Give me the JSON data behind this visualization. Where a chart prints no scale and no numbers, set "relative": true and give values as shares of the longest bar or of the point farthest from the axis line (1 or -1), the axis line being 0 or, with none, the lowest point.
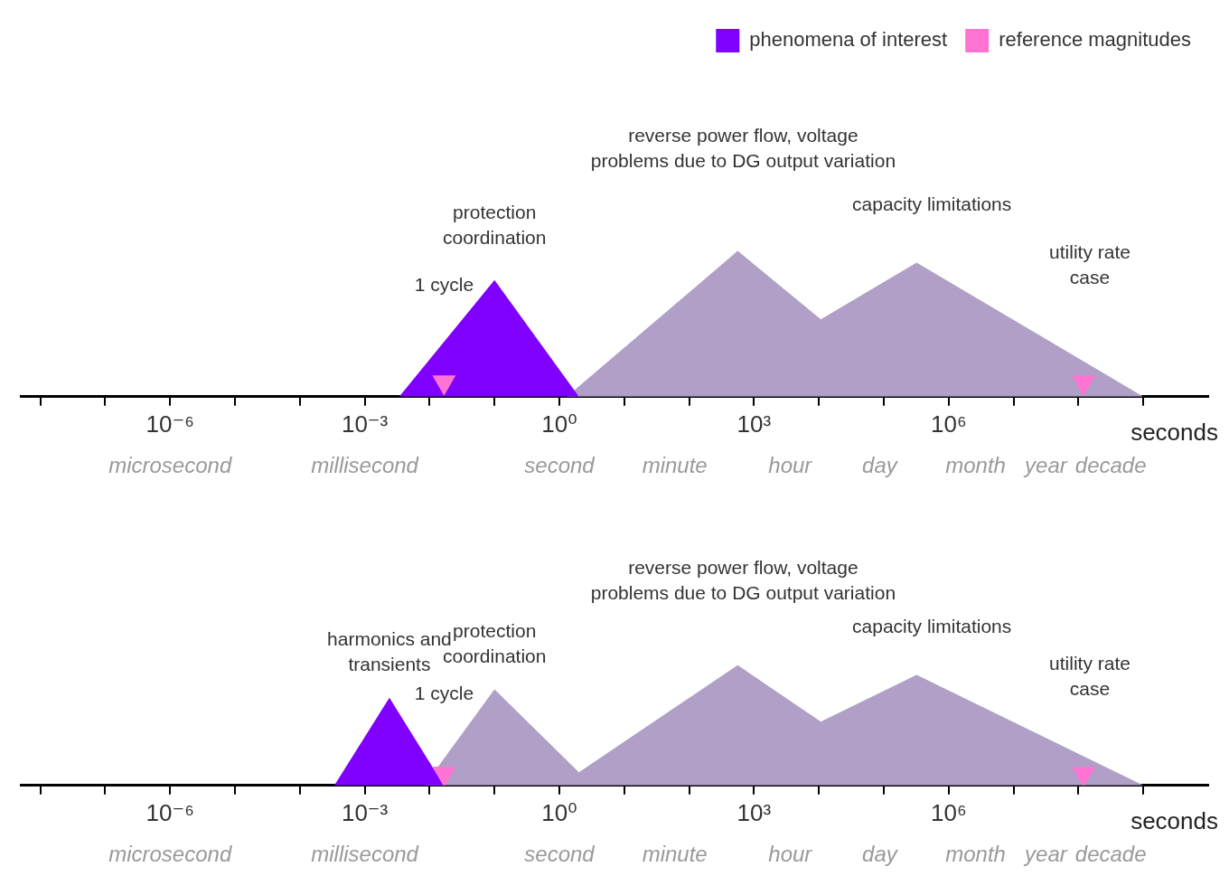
{
  "chart_data": [
    {
      "type": "area",
      "relative": true,
      "log": "x",
      "xlim": [
        5e-09,
        10000000000.0
      ],
      "xlabel": "seconds",
      "legend": "top right",
      "xticks": [
        {
          "value": 1e-08,
          "label": null
        },
        {
          "value": 1e-07,
          "label": null
        },
        {
          "value": 1e-06,
          "label": "10⁻⁶"
        },
        {
          "value": 1e-05,
          "label": null
        },
        {
          "value": 0.0001,
          "label": null
        },
        {
          "value": 0.001,
          "label": "10⁻³"
        },
        {
          "value": 0.01,
          "label": null
        },
        {
          "value": 0.1,
          "label": null
        },
        {
          "value": 1,
          "label": "10⁰"
        },
        {
          "value": 10,
          "label": null
        },
        {
          "value": 100,
          "label": null
        },
        {
          "value": 1000,
          "label": "10³"
        },
        {
          "value": 10000.0,
          "label": null
        },
        {
          "value": 100000.0,
          "label": null
        },
        {
          "value": 1000000.0,
          "label": "10⁶"
        },
        {
          "value": 10000000.0,
          "label": null
        },
        {
          "value": 100000000.0,
          "label": null
        },
        {
          "value": 1000000000.0,
          "label": null
        }
      ],
      "series": [
        {
          "type": "area",
          "color": "#b09fc6",
          "x": [
            1.3,
            560,
            10700,
            320000,
            1000000000.0
          ],
          "values": [
            0,
            1,
            0.53,
            0.92,
            0
          ]
        },
        {
          "type": "area",
          "name": "phenomena of interest",
          "color": "#7f00ff",
          "x": [
            0.0034,
            0.1,
            2
          ],
          "values": [
            0,
            0.8,
            0
          ]
        },
        {
          "type": "scatter",
          "name": "reference magnitudes",
          "color": "#ff73d2",
          "marker": "triangle",
          "x": [
            0.0167,
            120000000.0
          ],
          "values": [
            0.1,
            0.1
          ]
        }
      ],
      "annotations": [
        "protection coordination",
        "reverse power flow, voltage problems due to DG output variation",
        "capacity limitations",
        "1 cycle",
        "utility rate case",
        "microsecond",
        "millisecond",
        "second",
        "minute",
        "hour",
        "day",
        "month",
        "year",
        "decade"
      ]
    },
    {
      "type": "area",
      "relative": true,
      "log": "x",
      "xlim": [
        5e-09,
        10000000000.0
      ],
      "xlabel": "seconds",
      "xticks": [
        {
          "value": 1e-08,
          "label": null
        },
        {
          "value": 1e-07,
          "label": null
        },
        {
          "value": 1e-06,
          "label": "10⁻⁶"
        },
        {
          "value": 1e-05,
          "label": null
        },
        {
          "value": 0.0001,
          "label": null
        },
        {
          "value": 0.001,
          "label": "10⁻³"
        },
        {
          "value": 0.01,
          "label": null
        },
        {
          "value": 0.1,
          "label": null
        },
        {
          "value": 1,
          "label": "10⁰"
        },
        {
          "value": 10,
          "label": null
        },
        {
          "value": 100,
          "label": null
        },
        {
          "value": 1000,
          "label": "10³"
        },
        {
          "value": 10000.0,
          "label": null
        },
        {
          "value": 100000.0,
          "label": null
        },
        {
          "value": 1000000.0,
          "label": "10⁶"
        },
        {
          "value": 10000000.0,
          "label": null
        },
        {
          "value": 100000000.0,
          "label": null
        },
        {
          "value": 1000000000.0,
          "label": null
        }
      ],
      "series": [
        {
          "type": "area",
          "color": "#b09fc6",
          "x": [
            0.0083,
            0.1,
            2,
            560,
            10700,
            320000,
            1000000000.0
          ],
          "values": [
            0,
            0.8,
            0.11,
            1,
            0.53,
            0.92,
            0
          ]
        },
        {
          "type": "area",
          "color": "#7f00ff",
          "x": [
            0.00034,
            0.0024,
            0.0166
          ],
          "values": [
            0,
            0.73,
            0
          ]
        },
        {
          "type": "scatter",
          "color": "#ff73d2",
          "marker": "triangle",
          "x": [
            0.0167,
            120000000.0
          ],
          "values": [
            0.1,
            0.1
          ]
        }
      ],
      "annotations": [
        "harmonics and transients",
        "protection coordination",
        "reverse power flow, voltage problems due to DG output variation",
        "capacity limitations",
        "1 cycle",
        "utility rate case",
        "microsecond",
        "millisecond",
        "second",
        "minute",
        "hour",
        "day",
        "month",
        "year",
        "decade"
      ]
    }
  ]
}
